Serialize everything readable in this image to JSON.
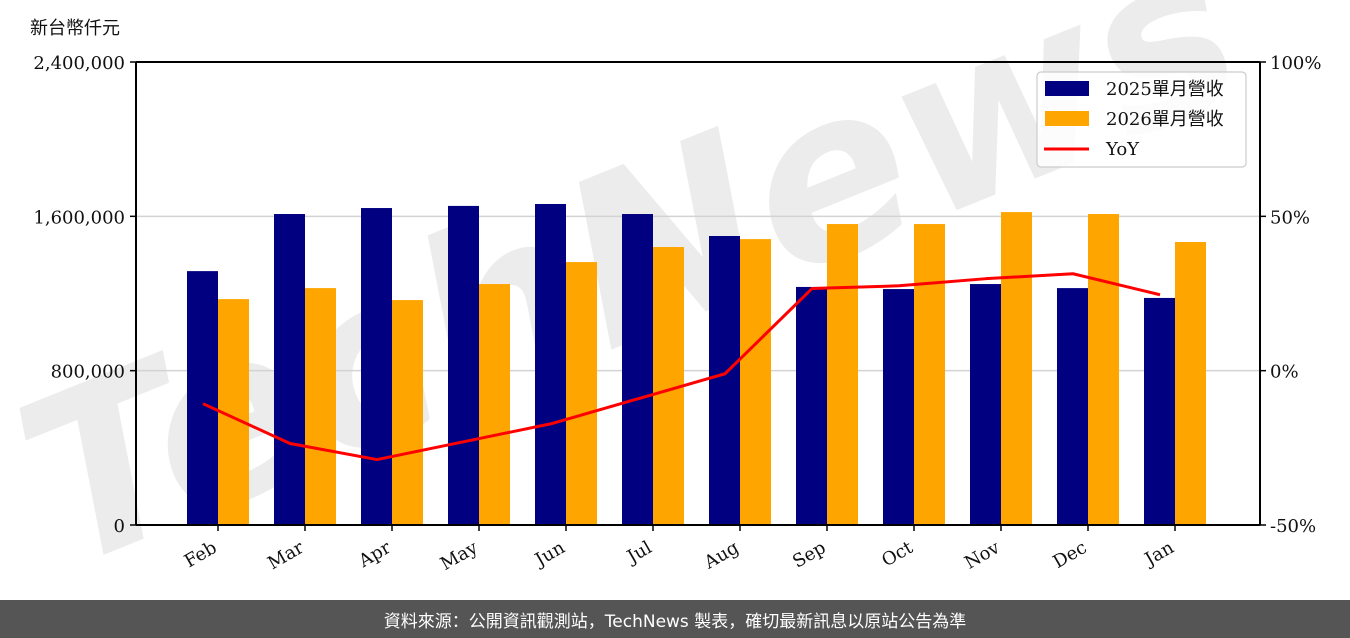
{
  "chart_data": {
    "type": "bar",
    "title": "",
    "unit_label": "新台幣仟元",
    "xlabel": "",
    "ylabel": "新台幣仟元",
    "y2label": "YoY",
    "categories": [
      "Feb",
      "Mar",
      "Apr",
      "May",
      "Jun",
      "Jul",
      "Aug",
      "Sep",
      "Oct",
      "Nov",
      "Dec",
      "Jan"
    ],
    "series": [
      {
        "name": "2025單月營收",
        "type": "bar",
        "color": "#000080",
        "axis": "left",
        "values": [
          1316000,
          1612000,
          1643000,
          1654000,
          1664000,
          1612000,
          1498000,
          1234000,
          1223000,
          1249000,
          1228000,
          1177000
        ]
      },
      {
        "name": "2026單月營收",
        "type": "bar",
        "color": "#FFA500",
        "axis": "left",
        "values": [
          1171000,
          1228000,
          1166000,
          1249000,
          1363000,
          1441000,
          1482000,
          1560000,
          1560000,
          1622000,
          1612000,
          1467000
        ]
      },
      {
        "name": "YoY",
        "type": "line",
        "color": "#FF0000",
        "axis": "right",
        "values": [
          -10.7,
          -23.6,
          -28.8,
          -23.0,
          -17.2,
          -9.1,
          -1.0,
          26.6,
          27.5,
          29.8,
          31.4,
          24.6
        ]
      }
    ],
    "ylim": [
      0,
      2400000
    ],
    "y_ticks": [
      0,
      800000,
      1600000,
      2400000
    ],
    "y_tick_labels": [
      "0",
      "800,000",
      "1,600,000",
      "2,400,000"
    ],
    "y2lim": [
      -50,
      100
    ],
    "y2_ticks": [
      -50,
      0,
      50,
      100
    ],
    "y2_tick_labels": [
      "-50%",
      "0%",
      "50%",
      "100%"
    ],
    "grid": "horizontal",
    "legend_position": "upper right",
    "watermark": "TechNews"
  },
  "footer": {
    "source_text": "資料來源：公開資訊觀測站，TechNews 製表，確切最新訊息以原站公告為準"
  }
}
